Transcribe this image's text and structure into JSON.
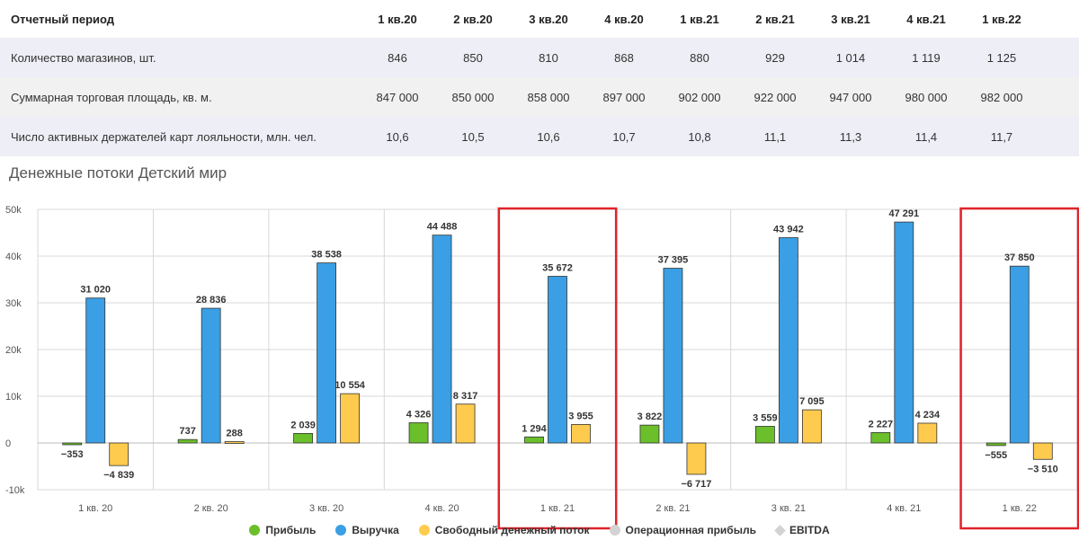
{
  "table": {
    "header": {
      "label": "Отчетный период",
      "periods": [
        "1 кв.20",
        "2 кв.20",
        "3 кв.20",
        "4 кв.20",
        "1 кв.21",
        "2 кв.21",
        "3 кв.21",
        "4 кв.21",
        "1 кв.22"
      ]
    },
    "rows": [
      {
        "label": "Количество магазинов, шт.",
        "values": [
          "846",
          "850",
          "810",
          "868",
          "880",
          "929",
          "1 014",
          "1 119",
          "1 125"
        ]
      },
      {
        "label": "Суммарная торговая площадь, кв. м.",
        "values": [
          "847 000",
          "850 000",
          "858 000",
          "897 000",
          "902 000",
          "922 000",
          "947 000",
          "980 000",
          "982 000"
        ]
      },
      {
        "label": "Число активных держателей карт лояльности, млн. чел.",
        "values": [
          "10,6",
          "10,5",
          "10,6",
          "10,7",
          "10,8",
          "11,1",
          "11,3",
          "11,4",
          "11,7"
        ]
      }
    ]
  },
  "chart_title": "Денежные потоки Детский мир",
  "chart_data": {
    "type": "bar",
    "categories": [
      "1 кв. 20",
      "2 кв. 20",
      "3 кв. 20",
      "4 кв. 20",
      "1 кв. 21",
      "2 кв. 21",
      "3 кв. 21",
      "4 кв. 21",
      "1 кв. 22"
    ],
    "series": [
      {
        "name": "Прибыль",
        "color": "#6abf2a",
        "values": [
          -353,
          737,
          2039,
          4326,
          1294,
          3822,
          3559,
          2227,
          -555
        ],
        "labels": [
          "−353",
          "737",
          "2 039",
          "4 326",
          "1 294",
          "3 822",
          "3 559",
          "2 227",
          "−555"
        ]
      },
      {
        "name": "Выручка",
        "color": "#3a9fe4",
        "values": [
          31020,
          28836,
          38538,
          44488,
          35672,
          37395,
          43942,
          47291,
          37850
        ],
        "labels": [
          "31 020",
          "28 836",
          "38 538",
          "44 488",
          "35 672",
          "37 395",
          "43 942",
          "47 291",
          "37 850"
        ]
      },
      {
        "name": "Свободный денежный поток",
        "color": "#fecb4e",
        "values": [
          -4839,
          288,
          10554,
          8317,
          3955,
          -6717,
          7095,
          4234,
          -3510
        ],
        "labels": [
          "−4 839",
          "288",
          "10 554",
          "8 317",
          "3 955",
          "−6 717",
          "7 095",
          "4 234",
          "−3 510"
        ]
      }
    ],
    "yticks": [
      -10000,
      0,
      10000,
      20000,
      30000,
      40000,
      50000
    ],
    "ytick_labels": [
      "-10k",
      "0",
      "10k",
      "20k",
      "30k",
      "40k",
      "50k"
    ],
    "ylim": [
      -10000,
      50000
    ],
    "grid": true,
    "highlighted_categories": [
      "1 кв. 21",
      "1 кв. 22"
    ],
    "highlight_color": "#e0242a"
  },
  "legend": [
    {
      "name": "Прибыль",
      "color": "#6abf2a",
      "shape": "circle"
    },
    {
      "name": "Выручка",
      "color": "#3a9fe4",
      "shape": "circle"
    },
    {
      "name": "Свободный денежный поток",
      "color": "#fecb4e",
      "shape": "circle"
    },
    {
      "name": "Операционная прибыль",
      "color": "#d3d3d3",
      "shape": "circle"
    },
    {
      "name": "EBITDA",
      "color": "#d3d3d3",
      "shape": "diamond"
    }
  ]
}
